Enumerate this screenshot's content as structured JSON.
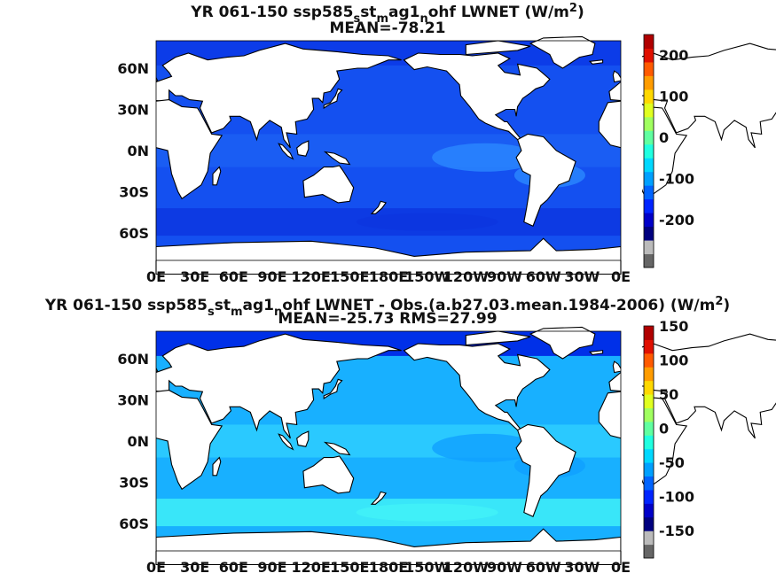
{
  "chart_data": [
    {
      "type": "heatmap",
      "title_parts": {
        "a": "YR 061-150 ssp585",
        "s1": "s",
        "b": "st",
        "s2": "m",
        "c": "ag1",
        "s3": "n",
        "d": "ohf  LWNET (W/m",
        "sup": "2",
        "e": ")"
      },
      "subtitle": "MEAN=-78.21",
      "x_ticks": [
        "0E",
        "30E",
        "60E",
        "90E",
        "120E",
        "150E",
        "180E",
        "150W",
        "120W",
        "90W",
        "60W",
        "30W",
        "0E"
      ],
      "y_ticks": [
        "60N",
        "30N",
        "0N",
        "30S",
        "60S"
      ],
      "colorbar": {
        "ticks": [
          200,
          100,
          0,
          -100,
          -200
        ],
        "range": [
          -250,
          250
        ],
        "colors": [
          "#666666",
          "#bbbbbb",
          "#00007f",
          "#0000c8",
          "#0024ff",
          "#0064ff",
          "#00a0ff",
          "#00d8ff",
          "#20ffe0",
          "#60ffa0",
          "#a0ff60",
          "#e0ff20",
          "#ffd800",
          "#ff9c00",
          "#ff5a00",
          "#e01000",
          "#b00000"
        ]
      },
      "field_colors": {
        "base": "#1450f0",
        "arctic": "#0c3ce8",
        "tropics": "#1c60f4",
        "upwelling": "#2a88ff",
        "southern": "#0c36e0"
      },
      "grid": false,
      "legend": "right colorbar"
    },
    {
      "type": "heatmap",
      "title_parts": {
        "a": "YR 061-150 ssp585",
        "s1": "s",
        "b": "st",
        "s2": "m",
        "c": "ag1",
        "s3": "n",
        "d": "ohf LWNET - Obs.(a.b27.03.mean.1984-2006) (W/m",
        "sup": "2",
        "e": ")"
      },
      "subtitle": "MEAN=-25.73 RMS=27.99",
      "x_ticks": [
        "0E",
        "30E",
        "60E",
        "90E",
        "120E",
        "150E",
        "180E",
        "150W",
        "120W",
        "90W",
        "60W",
        "30W",
        "0E"
      ],
      "y_ticks": [
        "60N",
        "30N",
        "0N",
        "30S",
        "60S"
      ],
      "colorbar": {
        "ticks": [
          150,
          100,
          50,
          0,
          -50,
          -100,
          -150
        ],
        "range": [
          -150,
          150
        ],
        "colors": [
          "#666666",
          "#bbbbbb",
          "#00007f",
          "#0000c8",
          "#0024ff",
          "#0064ff",
          "#00a0ff",
          "#00d8ff",
          "#20ffe0",
          "#60ffa0",
          "#a0ff60",
          "#e0ff20",
          "#ffd800",
          "#ff9c00",
          "#ff5a00",
          "#e01000",
          "#b00000"
        ]
      },
      "field_colors": {
        "base": "#18b0ff",
        "arctic": "#0030e8",
        "tropics": "#30d0ff",
        "upwelling": "#10a0ff",
        "southern": "#40f0f8"
      },
      "grid": false,
      "legend": "right colorbar"
    }
  ]
}
